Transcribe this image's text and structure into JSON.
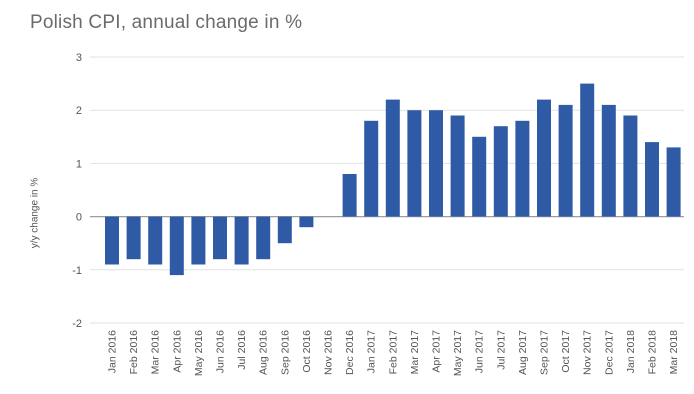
{
  "chart_data": {
    "type": "bar",
    "title": "Polish CPI, annual change in %",
    "xlabel": "",
    "ylabel": "y/y change in %",
    "ylim": [
      -2,
      3
    ],
    "yticks": [
      3,
      2,
      1,
      0,
      -1,
      -2
    ],
    "grid": true,
    "legend": "none",
    "bar_color": "#2f5ba6",
    "categories": [
      "Jan 2016",
      "Feb 2016",
      "Mar 2016",
      "Apr 2016",
      "May 2016",
      "Jun 2016",
      "Jul 2016",
      "Aug 2016",
      "Sep 2016",
      "Oct 2016",
      "Nov 2016",
      "Dec 2016",
      "Jan 2017",
      "Feb 2017",
      "Mar 2017",
      "Apr 2017",
      "May 2017",
      "Jun 2017",
      "Jul 2017",
      "Aug 2017",
      "Sep 2017",
      "Oct 2017",
      "Nov 2017",
      "Dec 2017",
      "Jan 2018",
      "Feb 2018",
      "Mar 2018"
    ],
    "values": [
      -0.9,
      -0.8,
      -0.9,
      -1.1,
      -0.9,
      -0.8,
      -0.9,
      -0.8,
      -0.5,
      -0.2,
      0.0,
      0.8,
      1.8,
      2.2,
      2.0,
      2.0,
      1.9,
      1.5,
      1.7,
      1.8,
      2.2,
      2.1,
      2.5,
      2.1,
      1.9,
      1.4,
      1.3
    ]
  }
}
